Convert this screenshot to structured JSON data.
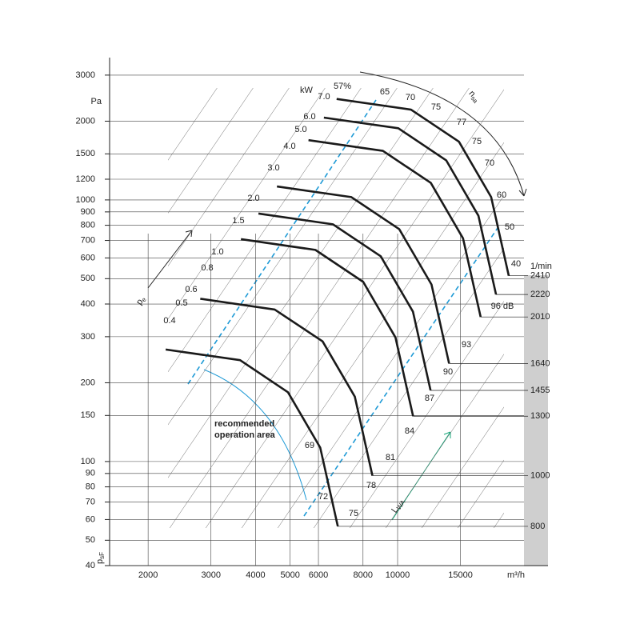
{
  "chart_data": {
    "type": "fan-curve",
    "x_label": "m³/h",
    "y_unit": "Pa",
    "y_label": {
      "main": "p",
      "sub": "sF"
    },
    "rpm_label": "1/min",
    "power_unit": "kW",
    "log_x": true,
    "log_y": true,
    "grid": true,
    "xlim": [
      1560,
      22600
    ],
    "ylim": [
      40,
      3500
    ],
    "xticks": [
      2000,
      3000,
      4000,
      5000,
      6000,
      8000,
      10000,
      15000
    ],
    "yticks": [
      40,
      50,
      60,
      70,
      80,
      90,
      100,
      150,
      200,
      300,
      400,
      500,
      600,
      700,
      800,
      900,
      1000,
      1200,
      1500,
      2000,
      3000
    ],
    "series": [
      {
        "name": "800",
        "color": "#1a1a1a",
        "x": [
          2240,
          3620,
          4930,
          6070,
          6800
        ],
        "values": [
          268,
          244,
          184,
          113,
          56.5
        ]
      },
      {
        "name": "1000",
        "color": "#1a1a1a",
        "x": [
          2800,
          4525,
          6163,
          7588,
          8500
        ],
        "values": [
          419,
          381,
          288,
          177,
          88.3
        ]
      },
      {
        "name": "1300",
        "color": "#1a1a1a",
        "x": [
          3640,
          5883,
          8011,
          9864,
          11050
        ],
        "values": [
          708,
          644,
          486,
          298,
          149
        ]
      },
      {
        "name": "1455",
        "color": "#1a1a1a",
        "x": [
          4075,
          6585,
          8968,
          11041,
          12369
        ],
        "values": [
          887,
          807,
          609,
          374,
          187
        ]
      },
      {
        "name": "1640",
        "color": "#1a1a1a",
        "x": [
          4592,
          7421,
          10106,
          12444,
          13940
        ],
        "values": [
          1126,
          1025,
          773,
          475,
          237
        ]
      },
      {
        "name": "2010",
        "color": "#1a1a1a",
        "x": [
          5628,
          9095,
          12387,
          15251,
          17085
        ],
        "values": [
          1692,
          1540,
          1162,
          713,
          357
        ]
      },
      {
        "name": "2220",
        "color": "#1a1a1a",
        "x": [
          6216,
          10046,
          13681,
          16844,
          18870
        ],
        "values": [
          2064,
          1879,
          1417,
          870,
          435
        ]
      },
      {
        "name": "2410",
        "color": "#1a1a1a",
        "x": [
          6748,
          10905,
          14852,
          18286,
          20485
        ],
        "values": [
          2432,
          2214,
          1670,
          1025,
          513
        ]
      }
    ],
    "power_labels": [
      "7.0",
      "6.0",
      "5.0",
      "4.0",
      "3.0",
      "2.0",
      "1.5",
      "1.0",
      "0.8",
      "0.6",
      "0.5",
      "0.4"
    ],
    "efficiency_labels": [
      "57%",
      "65",
      "70",
      "75",
      "77",
      "75",
      "70",
      "60",
      "50",
      "40"
    ],
    "sound_labels": [
      "69",
      "72",
      "75",
      "78",
      "81",
      "84",
      "87",
      "90",
      "93",
      "96 dB"
    ],
    "recommended_label": [
      "recommended",
      "operation area"
    ],
    "pe_label": {
      "main": "p",
      "sub": "e"
    },
    "speed_label": {
      "main": "n",
      "sub": "sa"
    },
    "sound_axis_label": {
      "main": "L",
      "sub": "WA"
    }
  }
}
